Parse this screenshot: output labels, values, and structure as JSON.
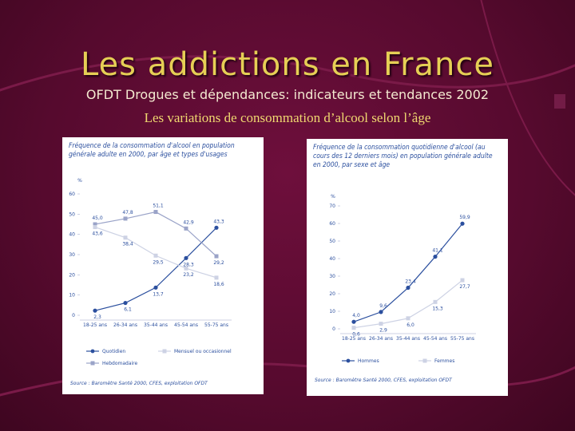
{
  "title": "Les addictions en France",
  "subtitle": "OFDT Drogues et dépendances: indicateurs et tendances 2002",
  "heading": "Les variations de consommation d’alcool selon l’âge",
  "chart_data": [
    {
      "type": "line",
      "title": "Fréquence de la consommation d'alcool en population générale adulte en 2000, par âge et types d'usages",
      "ylabel": "%",
      "categories": [
        "18-25 ans",
        "26-34 ans",
        "35-44 ans",
        "45-54 ans",
        "55-75 ans"
      ],
      "series": [
        {
          "name": "Quotidien",
          "color": "#2b4f9e",
          "values": [
            2.3,
            6.1,
            13.7,
            28.3,
            43.3
          ],
          "value_labels": [
            "2,3",
            "6,1",
            "13,7",
            "28,3",
            "43,3"
          ]
        },
        {
          "name": "Hebdomadaire",
          "color": "#9aa3c8",
          "values": [
            45.0,
            47.8,
            51.1,
            42.9,
            29.2
          ],
          "value_labels": [
            "45,0",
            "47,8",
            "51,1",
            "42,9",
            "29,2"
          ]
        },
        {
          "name": "Mensuel ou occasionnel",
          "color": "#cdd2e4",
          "values": [
            43.6,
            38.4,
            29.5,
            23.2,
            18.6
          ],
          "value_labels": [
            "43,6",
            "38,4",
            "29,5",
            "23,2",
            "18,6"
          ]
        }
      ],
      "ylim": [
        0,
        60
      ],
      "yticks": [
        0,
        10,
        20,
        30,
        40,
        50,
        60
      ],
      "source": "Source : Baromètre Santé 2000, CFES, exploitation OFDT"
    },
    {
      "type": "line",
      "title": "Fréquence de la consommation quotidienne d'alcool (au cours des 12 derniers mois) en population générale adulte en 2000, par sexe et âge",
      "ylabel": "%",
      "categories": [
        "18-25 ans",
        "26-34 ans",
        "35-44 ans",
        "45-54 ans",
        "55-75 ans"
      ],
      "series": [
        {
          "name": "Hommes",
          "color": "#2b4f9e",
          "values": [
            4.0,
            9.6,
            23.4,
            41.1,
            59.9
          ],
          "value_labels": [
            "4,0",
            "9,6",
            "23,4",
            "41,1",
            "59,9"
          ]
        },
        {
          "name": "Femmes",
          "color": "#cdd2e4",
          "values": [
            0.6,
            2.9,
            6.0,
            15.3,
            27.7
          ],
          "value_labels": [
            "0,6",
            "2,9",
            "6,0",
            "15,3",
            "27,7"
          ]
        }
      ],
      "ylim": [
        0,
        70
      ],
      "yticks": [
        0,
        10,
        20,
        30,
        40,
        50,
        60,
        70
      ],
      "source": "Source : Baromètre Santé 2000, CFES, exploitation OFDT"
    }
  ]
}
